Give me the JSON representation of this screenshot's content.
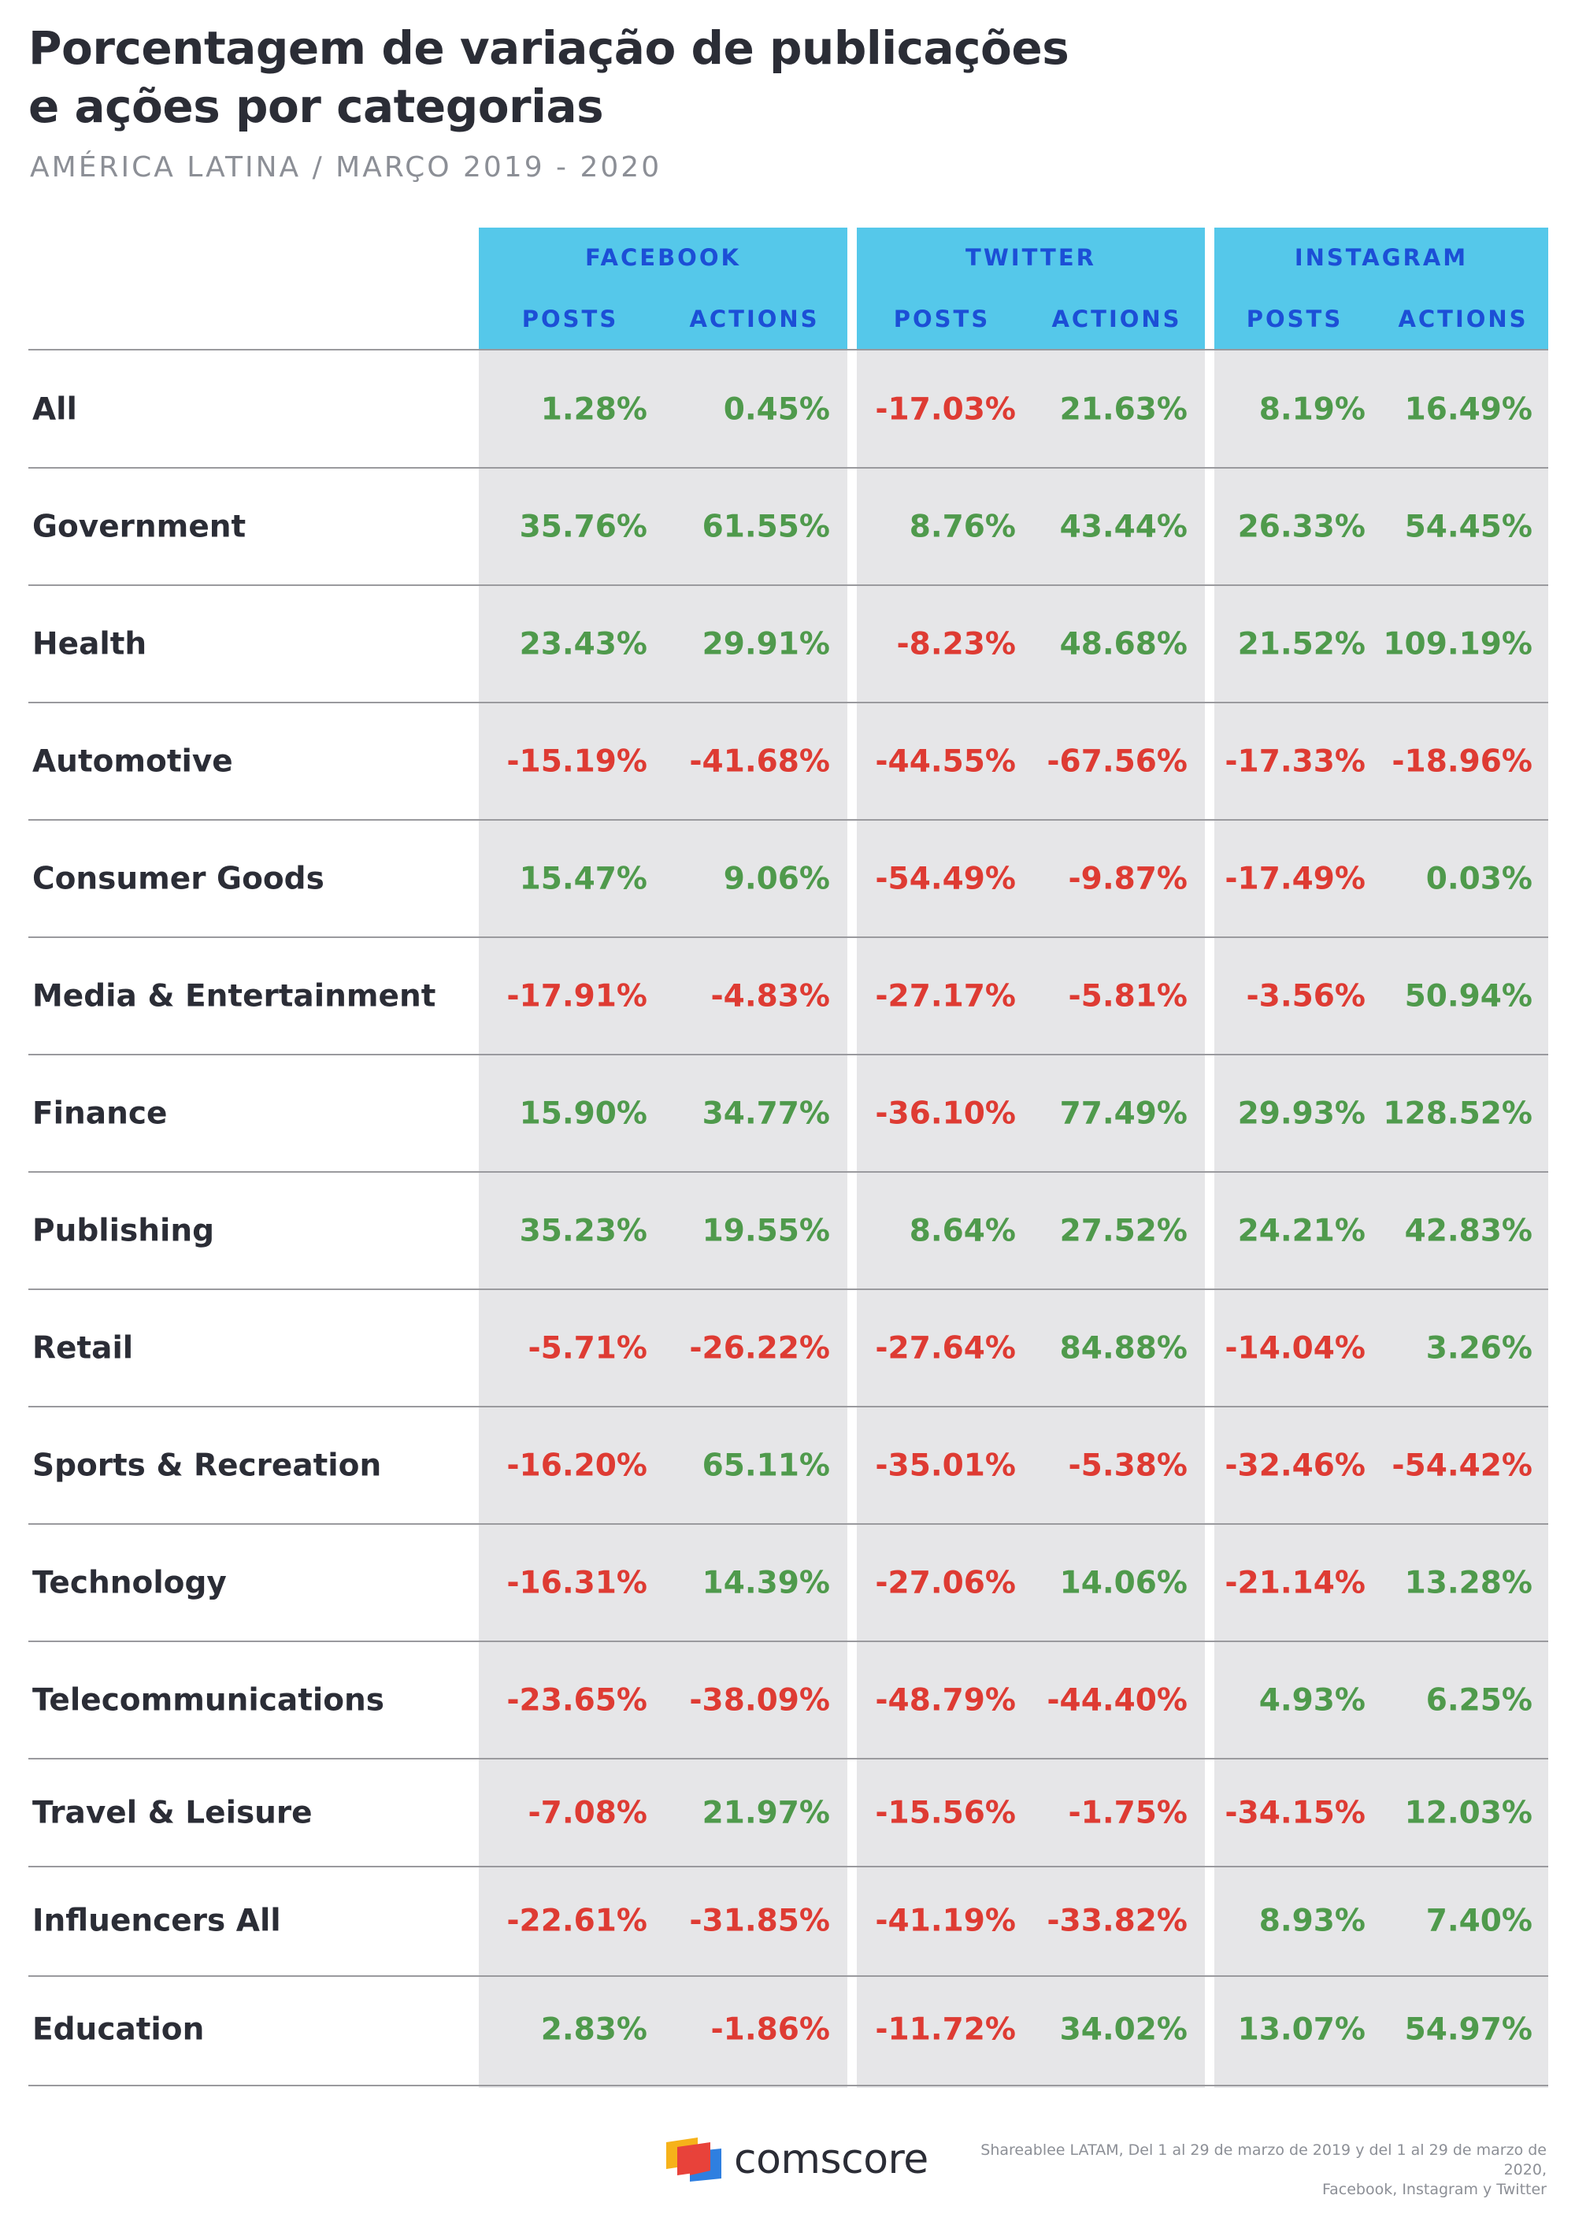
{
  "header": {
    "title_line1": "Porcentagem de variação de publicações",
    "title_line2": "e ações por categorias",
    "subtitle": "AMÉRICA LATINA / MARÇO 2019 - 2020"
  },
  "colors": {
    "positive": "#4f9a4c",
    "negative": "#de3b33",
    "header_bg": "#55c8ea",
    "header_text": "#1c4fd6",
    "column_bg": "#e6e6e8"
  },
  "chart_data": {
    "type": "table",
    "groups": [
      "FACEBOOK",
      "TWITTER",
      "INSTAGRAM"
    ],
    "subcolumns": [
      "POSTS",
      "ACTIONS"
    ],
    "rows": [
      {
        "category": "All",
        "values": [
          "1.28%",
          "0.45%",
          "-17.03%",
          "21.63%",
          "8.19%",
          "16.49%"
        ]
      },
      {
        "category": "Government",
        "values": [
          "35.76%",
          "61.55%",
          "8.76%",
          "43.44%",
          "26.33%",
          "54.45%"
        ]
      },
      {
        "category": "Health",
        "values": [
          "23.43%",
          "29.91%",
          "-8.23%",
          "48.68%",
          "21.52%",
          "109.19%"
        ]
      },
      {
        "category": "Automotive",
        "values": [
          "-15.19%",
          "-41.68%",
          "-44.55%",
          "-67.56%",
          "-17.33%",
          "-18.96%"
        ]
      },
      {
        "category": "Consumer Goods",
        "values": [
          "15.47%",
          "9.06%",
          "-54.49%",
          "-9.87%",
          "-17.49%",
          "0.03%"
        ]
      },
      {
        "category": "Media & Entertainment",
        "values": [
          "-17.91%",
          "-4.83%",
          "-27.17%",
          "-5.81%",
          "-3.56%",
          "50.94%"
        ]
      },
      {
        "category": "Finance",
        "values": [
          "15.90%",
          "34.77%",
          "-36.10%",
          "77.49%",
          "29.93%",
          "128.52%"
        ]
      },
      {
        "category": "Publishing",
        "values": [
          "35.23%",
          "19.55%",
          "8.64%",
          "27.52%",
          "24.21%",
          "42.83%"
        ]
      },
      {
        "category": "Retail",
        "values": [
          "-5.71%",
          "-26.22%",
          "-27.64%",
          "84.88%",
          "-14.04%",
          "3.26%"
        ]
      },
      {
        "category": "Sports & Recreation",
        "values": [
          "-16.20%",
          "65.11%",
          "-35.01%",
          "-5.38%",
          "-32.46%",
          "-54.42%"
        ]
      },
      {
        "category": "Technology",
        "values": [
          "-16.31%",
          "14.39%",
          "-27.06%",
          "14.06%",
          "-21.14%",
          "13.28%"
        ]
      },
      {
        "category": "Telecommunications",
        "values": [
          "-23.65%",
          "-38.09%",
          "-48.79%",
          "-44.40%",
          "4.93%",
          "6.25%"
        ]
      },
      {
        "category": "Travel & Leisure",
        "values": [
          "-7.08%",
          "21.97%",
          "-15.56%",
          "-1.75%",
          "-34.15%",
          "12.03%"
        ]
      },
      {
        "category": "Influencers All",
        "values": [
          "-22.61%",
          "-31.85%",
          "-41.19%",
          "-33.82%",
          "8.93%",
          "7.40%"
        ]
      },
      {
        "category": "Education",
        "values": [
          "2.83%",
          "-1.86%",
          "-11.72%",
          "34.02%",
          "13.07%",
          "54.97%"
        ]
      }
    ]
  },
  "footer": {
    "brand": "comscore",
    "source_line1": "Shareablee LATAM, Del 1 al 29 de marzo de 2019 y del 1 al 29 de marzo de 2020,",
    "source_line2": "Facebook, Instagram y Twitter"
  }
}
